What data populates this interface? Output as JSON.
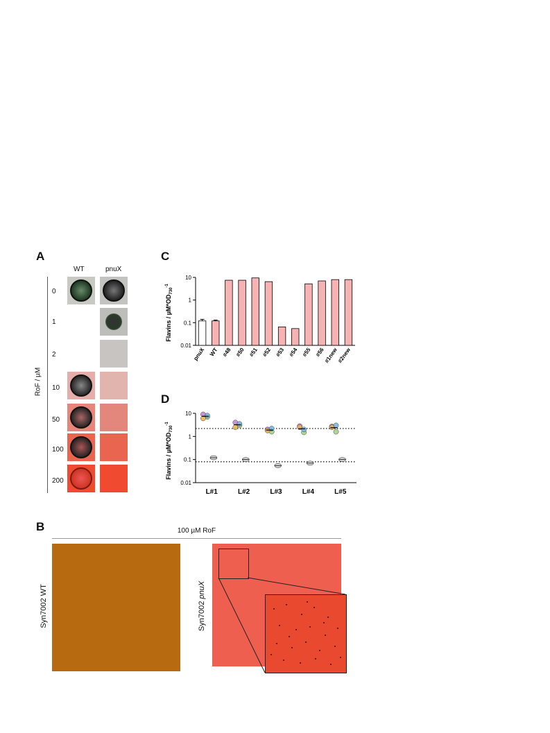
{
  "panel_a": {
    "label": "A",
    "col_headers": [
      "WT",
      "pnuX"
    ],
    "row_axis_label": "RoF / µM",
    "rows": [
      "0",
      "1",
      "2",
      "10",
      "50",
      "100",
      "200"
    ]
  },
  "panel_b": {
    "label": "B",
    "header": "100 µM RoF",
    "wt_label": "Syn7002 WT",
    "mut_label_prefix": "Syn7002 ",
    "mut_label_italic": "pnuX"
  },
  "panel_c": {
    "label": "C",
    "ylabel": "Flavins / µM*OD730-1"
  },
  "panel_d": {
    "label": "D",
    "ylabel": "Flavins / µM*OD730-1"
  },
  "colors": {
    "bar_fill": "#f7b3b3",
    "plate_wt": "#b86a10",
    "plate_pnux": "#ef5f4f",
    "agar_red": "#f04a30"
  },
  "chart_data": [
    {
      "type": "bar",
      "title": "",
      "xlabel": "",
      "ylabel": "Flavins / µM*OD730-1",
      "yscale": "log",
      "ylim": [
        0.01,
        10
      ],
      "yticks": [
        "0.01",
        "0.1",
        "1",
        "10"
      ],
      "categories": [
        "pnuX",
        "WT",
        "#48",
        "#50",
        "#51",
        "#52",
        "#53",
        "#54",
        "#55",
        "#56",
        "#1new",
        "#2new"
      ],
      "values": [
        0.12,
        0.12,
        7.5,
        7.5,
        9.5,
        6.5,
        0.065,
        0.055,
        5.2,
        7.0,
        8.0,
        8.0
      ],
      "errors": [
        0.02,
        0.01,
        0,
        0,
        0,
        0,
        0,
        0,
        0,
        0,
        0,
        0
      ]
    },
    {
      "type": "scatter",
      "title": "",
      "xlabel": "",
      "ylabel": "Flavins / µM*OD730-1",
      "yscale": "log",
      "ylim": [
        0.01,
        10
      ],
      "yticks": [
        "0.01",
        "0.1",
        "1",
        "10"
      ],
      "categories": [
        "L#1",
        "L#2",
        "L#3",
        "L#4",
        "L#5"
      ],
      "reference_lines": [
        2.2,
        0.08
      ],
      "series": [
        {
          "group": "high",
          "values": [
            [
              9,
              7,
              6,
              8
            ],
            [
              4,
              3,
              2.5,
              3.5
            ],
            [
              2,
              1.6,
              1.8,
              2.2
            ],
            [
              2.8,
              1.5,
              2.5,
              2
            ],
            [
              2.7,
              1.6,
              2.5,
              3
            ]
          ]
        },
        {
          "group": "low",
          "values": [
            [
              0.12
            ],
            [
              0.1
            ],
            [
              0.055
            ],
            [
              0.07
            ],
            [
              0.1
            ]
          ]
        }
      ]
    }
  ]
}
